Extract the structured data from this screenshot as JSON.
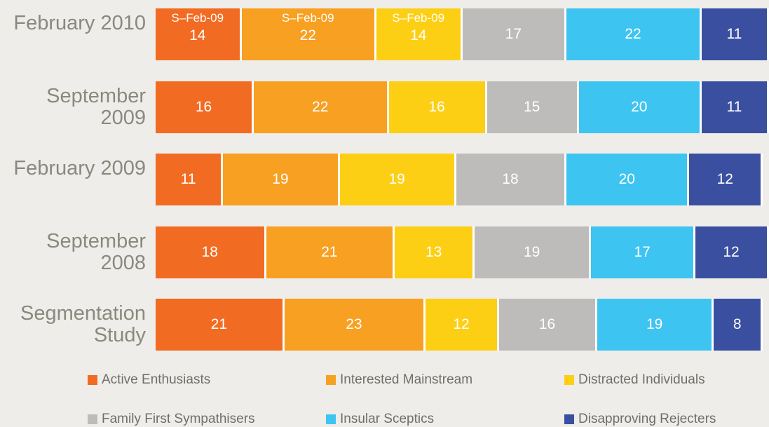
{
  "chart_data": {
    "type": "stacked-bar-horizontal",
    "categories": [
      "February 2010",
      "September 2009",
      "February 2009",
      "September 2008",
      "Segmentation Study"
    ],
    "xlim": [
      0,
      100
    ],
    "series": [
      {
        "name": "Active Enthusiasts",
        "color": "#f26b22",
        "values": [
          14,
          16,
          11,
          18,
          21
        ],
        "annotations": [
          "S–Feb-09",
          null,
          null,
          null,
          null
        ]
      },
      {
        "name": "Interested Mainstream",
        "color": "#f7a021",
        "values": [
          22,
          22,
          19,
          21,
          23
        ],
        "annotations": [
          "S–Feb-09",
          null,
          null,
          null,
          null
        ]
      },
      {
        "name": "Distracted Individuals",
        "color": "#fccf14",
        "values": [
          14,
          16,
          19,
          13,
          12
        ],
        "annotations": [
          "S–Feb-09",
          null,
          null,
          null,
          null
        ]
      },
      {
        "name": "Family First Sympathisers",
        "color": "#bdbcbb",
        "values": [
          17,
          15,
          18,
          19,
          16
        ]
      },
      {
        "name": "Insular Sceptics",
        "color": "#3ec4f1",
        "values": [
          22,
          20,
          20,
          17,
          19
        ]
      },
      {
        "name": "Disapproving Rejecters",
        "color": "#3a4f9f",
        "values": [
          11,
          11,
          12,
          12,
          8
        ]
      }
    ]
  }
}
